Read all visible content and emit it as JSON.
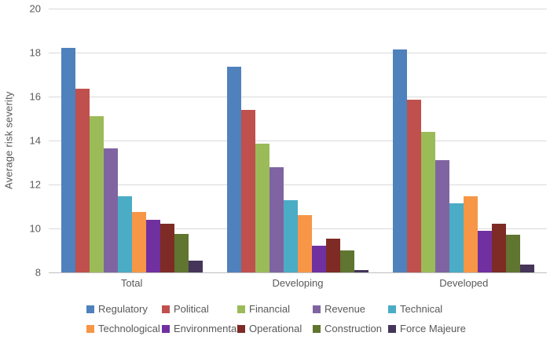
{
  "chart_data": {
    "type": "bar",
    "title": "",
    "xlabel": "",
    "ylabel": "Average risk severity",
    "ylim": [
      8,
      20
    ],
    "yticks": [
      20,
      18,
      16,
      14,
      12,
      10,
      8
    ],
    "grid": "horizontal",
    "legend_position": "bottom",
    "categories": [
      "Total",
      "Developing",
      "Developed"
    ],
    "series": [
      {
        "name": "Regulatory",
        "color": "#4F81BD",
        "values": [
          18.2,
          17.35,
          18.15
        ]
      },
      {
        "name": "Political",
        "color": "#C0504D",
        "values": [
          16.35,
          15.4,
          15.85
        ]
      },
      {
        "name": "Financial",
        "color": "#9BBB59",
        "values": [
          15.1,
          13.85,
          14.4
        ]
      },
      {
        "name": "Revenue",
        "color": "#8064A2",
        "values": [
          13.65,
          12.8,
          13.1
        ]
      },
      {
        "name": "Technical",
        "color": "#4BACC6",
        "values": [
          11.45,
          11.3,
          11.15
        ]
      },
      {
        "name": "Technological",
        "color": "#F79646",
        "values": [
          10.75,
          10.6,
          11.45
        ]
      },
      {
        "name": "Environmental",
        "color": "#7030A0",
        "values": [
          10.4,
          9.2,
          9.9
        ]
      },
      {
        "name": "Operational",
        "color": "#7E2B26",
        "values": [
          10.2,
          9.55,
          10.2
        ]
      },
      {
        "name": "Construction",
        "color": "#5F7530",
        "values": [
          9.75,
          9.0,
          9.7
        ]
      },
      {
        "name": "Force Majeure",
        "color": "#453558",
        "values": [
          8.55,
          8.1,
          8.35
        ]
      }
    ]
  },
  "colors": {
    "axis_text": "#595959",
    "gridline": "#D9D9D9",
    "baseline": "#BFBFBF",
    "background": "#FFFFFF"
  }
}
